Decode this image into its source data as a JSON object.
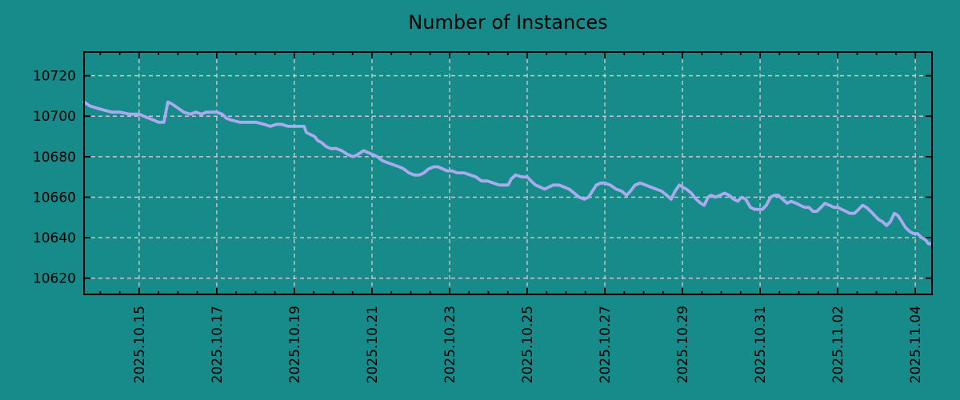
{
  "colors": {
    "background": "#178a8a",
    "line": "#aaaaee",
    "grid": "#c8c8c8",
    "axis": "#000000",
    "text": "#000000"
  },
  "chart_data": {
    "type": "line",
    "title": "Number of Instances",
    "legend": {
      "show": false
    },
    "grid": {
      "show": true,
      "style": "dashed"
    },
    "x_axis": {
      "unit": "date",
      "note": "x values are day numbers in October 2025; values above 31 are November (32 = Nov 1, 35 = Nov 4)",
      "lim": [
        13.58,
        35.43
      ],
      "major_ticks": [
        15,
        17,
        19,
        21,
        23,
        25,
        27,
        29,
        31,
        33,
        35
      ],
      "major_tick_labels": [
        "2025.10.15",
        "2025.10.17",
        "2025.10.19",
        "2025.10.21",
        "2025.10.23",
        "2025.10.25",
        "2025.10.27",
        "2025.10.29",
        "2025.10.31",
        "2025.11.02",
        "2025.11.04"
      ],
      "minor_tick_step": 0.5
    },
    "y_axis": {
      "lim": [
        10612,
        10731.7
      ],
      "major_ticks": [
        10620,
        10640,
        10660,
        10680,
        10700,
        10720
      ],
      "major_tick_labels": [
        "10620",
        "10640",
        "10660",
        "10680",
        "10700",
        "10720"
      ]
    },
    "series": [
      {
        "name": "Number of Instances",
        "color": "#aaaaee",
        "points": [
          [
            13.58,
            10707
          ],
          [
            13.74,
            10705
          ],
          [
            13.91,
            10704
          ],
          [
            14.09,
            10703
          ],
          [
            14.3,
            10702
          ],
          [
            14.51,
            10702
          ],
          [
            14.75,
            10701
          ],
          [
            15.0,
            10701
          ],
          [
            15.12,
            10700
          ],
          [
            15.25,
            10699
          ],
          [
            15.38,
            10698
          ],
          [
            15.5,
            10697
          ],
          [
            15.64,
            10697
          ],
          [
            15.74,
            10707
          ],
          [
            15.85,
            10706
          ],
          [
            16.0,
            10704
          ],
          [
            16.15,
            10702
          ],
          [
            16.32,
            10701
          ],
          [
            16.46,
            10702
          ],
          [
            16.61,
            10701
          ],
          [
            16.73,
            10702
          ],
          [
            16.86,
            10702
          ],
          [
            17.0,
            10702
          ],
          [
            17.14,
            10701
          ],
          [
            17.25,
            10699
          ],
          [
            17.39,
            10698
          ],
          [
            17.6,
            10697
          ],
          [
            17.8,
            10697
          ],
          [
            18.01,
            10697
          ],
          [
            18.22,
            10696
          ],
          [
            18.38,
            10695
          ],
          [
            18.53,
            10696
          ],
          [
            18.67,
            10696
          ],
          [
            18.84,
            10695
          ],
          [
            19.04,
            10695
          ],
          [
            19.25,
            10695
          ],
          [
            19.31,
            10692
          ],
          [
            19.41,
            10691
          ],
          [
            19.52,
            10690
          ],
          [
            19.6,
            10688
          ],
          [
            19.7,
            10687
          ],
          [
            19.82,
            10685
          ],
          [
            19.93,
            10684
          ],
          [
            20.08,
            10684
          ],
          [
            20.22,
            10683
          ],
          [
            20.38,
            10681
          ],
          [
            20.51,
            10680
          ],
          [
            20.63,
            10681
          ],
          [
            20.78,
            10683
          ],
          [
            20.9,
            10682
          ],
          [
            21.02,
            10681
          ],
          [
            21.14,
            10680
          ],
          [
            21.27,
            10678
          ],
          [
            21.41,
            10677
          ],
          [
            21.56,
            10676
          ],
          [
            21.7,
            10675
          ],
          [
            21.82,
            10674
          ],
          [
            21.95,
            10672
          ],
          [
            22.09,
            10671
          ],
          [
            22.22,
            10671
          ],
          [
            22.34,
            10672
          ],
          [
            22.46,
            10674
          ],
          [
            22.59,
            10675
          ],
          [
            22.7,
            10675
          ],
          [
            22.82,
            10674
          ],
          [
            22.94,
            10673
          ],
          [
            23.06,
            10673
          ],
          [
            23.2,
            10672
          ],
          [
            23.37,
            10672
          ],
          [
            23.53,
            10671
          ],
          [
            23.68,
            10670
          ],
          [
            23.82,
            10668
          ],
          [
            23.97,
            10668
          ],
          [
            24.13,
            10667
          ],
          [
            24.28,
            10666
          ],
          [
            24.42,
            10666
          ],
          [
            24.51,
            10666
          ],
          [
            24.59,
            10669
          ],
          [
            24.7,
            10671
          ],
          [
            24.86,
            10670
          ],
          [
            25.0,
            10670
          ],
          [
            25.1,
            10668
          ],
          [
            25.21,
            10666
          ],
          [
            25.33,
            10665
          ],
          [
            25.45,
            10664
          ],
          [
            25.56,
            10665
          ],
          [
            25.68,
            10666
          ],
          [
            25.82,
            10666
          ],
          [
            25.95,
            10665
          ],
          [
            26.08,
            10664
          ],
          [
            26.21,
            10662
          ],
          [
            26.34,
            10660
          ],
          [
            26.47,
            10659
          ],
          [
            26.58,
            10660
          ],
          [
            26.68,
            10663
          ],
          [
            26.78,
            10666
          ],
          [
            26.9,
            10667
          ],
          [
            27.0,
            10667
          ],
          [
            27.14,
            10666
          ],
          [
            27.29,
            10664
          ],
          [
            27.43,
            10663
          ],
          [
            27.56,
            10661
          ],
          [
            27.66,
            10663
          ],
          [
            27.78,
            10666
          ],
          [
            27.91,
            10667
          ],
          [
            28.05,
            10666
          ],
          [
            28.18,
            10665
          ],
          [
            28.32,
            10664
          ],
          [
            28.46,
            10663
          ],
          [
            28.59,
            10661
          ],
          [
            28.71,
            10659
          ],
          [
            28.81,
            10663
          ],
          [
            28.92,
            10666
          ],
          [
            29.0,
            10665
          ],
          [
            29.1,
            10664
          ],
          [
            29.23,
            10662
          ],
          [
            29.35,
            10659
          ],
          [
            29.47,
            10657
          ],
          [
            29.56,
            10656
          ],
          [
            29.66,
            10660
          ],
          [
            29.74,
            10661
          ],
          [
            29.85,
            10660
          ],
          [
            29.97,
            10661
          ],
          [
            30.09,
            10662
          ],
          [
            30.2,
            10661
          ],
          [
            30.32,
            10659
          ],
          [
            30.42,
            10658
          ],
          [
            30.53,
            10660
          ],
          [
            30.63,
            10659
          ],
          [
            30.75,
            10655
          ],
          [
            30.86,
            10654
          ],
          [
            30.96,
            10654
          ],
          [
            31.06,
            10654
          ],
          [
            31.16,
            10656
          ],
          [
            31.27,
            10660
          ],
          [
            31.37,
            10661
          ],
          [
            31.47,
            10661
          ],
          [
            31.58,
            10659
          ],
          [
            31.7,
            10657
          ],
          [
            31.8,
            10658
          ],
          [
            31.93,
            10657
          ],
          [
            32.03,
            10656
          ],
          [
            32.15,
            10655
          ],
          [
            32.26,
            10655
          ],
          [
            32.36,
            10653
          ],
          [
            32.46,
            10653
          ],
          [
            32.57,
            10655
          ],
          [
            32.67,
            10657
          ],
          [
            32.79,
            10656
          ],
          [
            32.9,
            10655
          ],
          [
            33.0,
            10655
          ],
          [
            33.1,
            10654
          ],
          [
            33.21,
            10653
          ],
          [
            33.31,
            10652
          ],
          [
            33.43,
            10652
          ],
          [
            33.54,
            10654
          ],
          [
            33.64,
            10656
          ],
          [
            33.74,
            10655
          ],
          [
            33.85,
            10653
          ],
          [
            33.95,
            10651
          ],
          [
            34.05,
            10649
          ],
          [
            34.15,
            10648
          ],
          [
            34.26,
            10646
          ],
          [
            34.36,
            10648
          ],
          [
            34.46,
            10652
          ],
          [
            34.55,
            10651
          ],
          [
            34.65,
            10648
          ],
          [
            34.75,
            10645
          ],
          [
            34.86,
            10643
          ],
          [
            34.96,
            10642
          ],
          [
            35.06,
            10642
          ],
          [
            35.16,
            10640
          ],
          [
            35.26,
            10639
          ],
          [
            35.34,
            10637
          ],
          [
            35.42,
            10637
          ]
        ]
      }
    ]
  }
}
